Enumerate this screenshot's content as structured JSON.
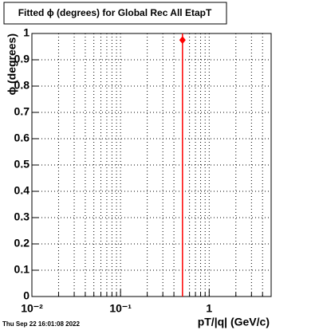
{
  "chart_data": {
    "type": "scatter",
    "title": "Fitted ϕ (degrees) for Global Rec All EtapT",
    "x_label": "pT/|q| (GeV/c)",
    "y_label": "ϕ (degrees)",
    "timestamp": "Thu Sep 22 16:01:08 2022",
    "x": [
      0.5
    ],
    "values": [
      0.975
    ],
    "errors": [
      0.975
    ],
    "color": "#ff0000",
    "x_log": true,
    "xlim": [
      0.01,
      5
    ],
    "xticks": [
      {
        "value": 0.01,
        "label": "10⁻²"
      },
      {
        "value": 0.1,
        "label": "10⁻¹"
      },
      1
    ],
    "ylim": [
      0,
      1
    ],
    "yticks": [
      0,
      0.1,
      0.2,
      0.3,
      0.4,
      0.5,
      0.6,
      0.7,
      0.8,
      0.9,
      1
    ],
    "grid": true
  }
}
